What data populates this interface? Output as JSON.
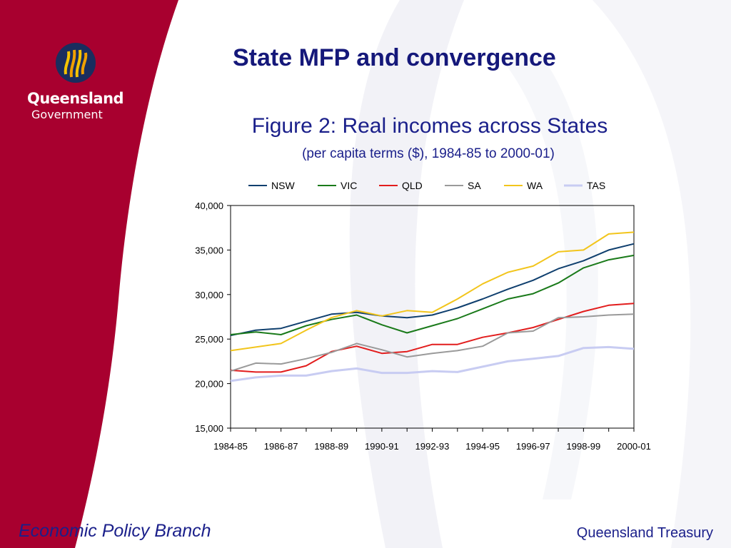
{
  "branding": {
    "logo_name": "Queensland",
    "logo_sub": "Government",
    "colors": {
      "maroon": "#a8002f",
      "title_blue": "#15187a"
    }
  },
  "slide": {
    "title": "State MFP and convergence",
    "figure_title": "Figure 2: Real incomes across States",
    "figure_subtitle": "(per capita terms ($), 1984-85 to 2000-01)"
  },
  "footer": {
    "left": "Economic Policy Branch",
    "right": "Queensland Treasury"
  },
  "chart_data": {
    "type": "line",
    "title": "Figure 2: Real incomes across States",
    "subtitle": "(per capita terms ($), 1984-85 to 2000-01)",
    "x": [
      "1984-85",
      "1985-86",
      "1986-87",
      "1987-88",
      "1988-89",
      "1989-90",
      "1990-91",
      "1991-92",
      "1992-93",
      "1993-94",
      "1994-95",
      "1995-96",
      "1996-97",
      "1997-98",
      "1998-99",
      "1999-00",
      "2000-01"
    ],
    "x_tick_labels": [
      "1984-85",
      "1986-87",
      "1988-89",
      "1990-91",
      "1992-93",
      "1994-95",
      "1996-97",
      "1998-99",
      "2000-01"
    ],
    "ylim": [
      15000,
      40000
    ],
    "y_ticks": [
      15000,
      20000,
      25000,
      30000,
      35000,
      40000
    ],
    "y_tick_labels": [
      "15,000",
      "20,000",
      "25,000",
      "30,000",
      "35,000",
      "40,000"
    ],
    "legend_position": "top",
    "grid": false,
    "series": [
      {
        "name": "NSW",
        "color": "#0f3f6e",
        "values": [
          25400,
          26000,
          26200,
          27000,
          27800,
          28000,
          27600,
          27400,
          27700,
          28500,
          29500,
          30600,
          31600,
          32900,
          33800,
          35000,
          35700
        ]
      },
      {
        "name": "VIC",
        "color": "#1a7a1a",
        "values": [
          25500,
          25800,
          25500,
          26500,
          27200,
          27700,
          26600,
          25700,
          26500,
          27300,
          28400,
          29500,
          30100,
          31300,
          33000,
          33900,
          34400
        ]
      },
      {
        "name": "QLD",
        "color": "#e21d1d",
        "values": [
          21500,
          21300,
          21300,
          22000,
          23600,
          24200,
          23400,
          23600,
          24400,
          24400,
          25200,
          25700,
          26300,
          27200,
          28100,
          28800,
          29000
        ]
      },
      {
        "name": "SA",
        "color": "#9a9a9a",
        "values": [
          21400,
          22300,
          22200,
          22800,
          23500,
          24500,
          23800,
          23000,
          23400,
          23700,
          24200,
          25700,
          25900,
          27400,
          27500,
          27700,
          27800
        ]
      },
      {
        "name": "WA",
        "color": "#f2c51c",
        "values": [
          23700,
          24100,
          24500,
          26000,
          27400,
          28200,
          27600,
          28200,
          28000,
          29500,
          31200,
          32500,
          33200,
          34800,
          35000,
          36800,
          37000
        ]
      },
      {
        "name": "TAS",
        "color": "#c8ccf2",
        "values": [
          20300,
          20700,
          20900,
          20900,
          21400,
          21700,
          21200,
          21200,
          21400,
          21300,
          21900,
          22500,
          22800,
          23100,
          24000,
          24100,
          23900
        ]
      }
    ]
  }
}
